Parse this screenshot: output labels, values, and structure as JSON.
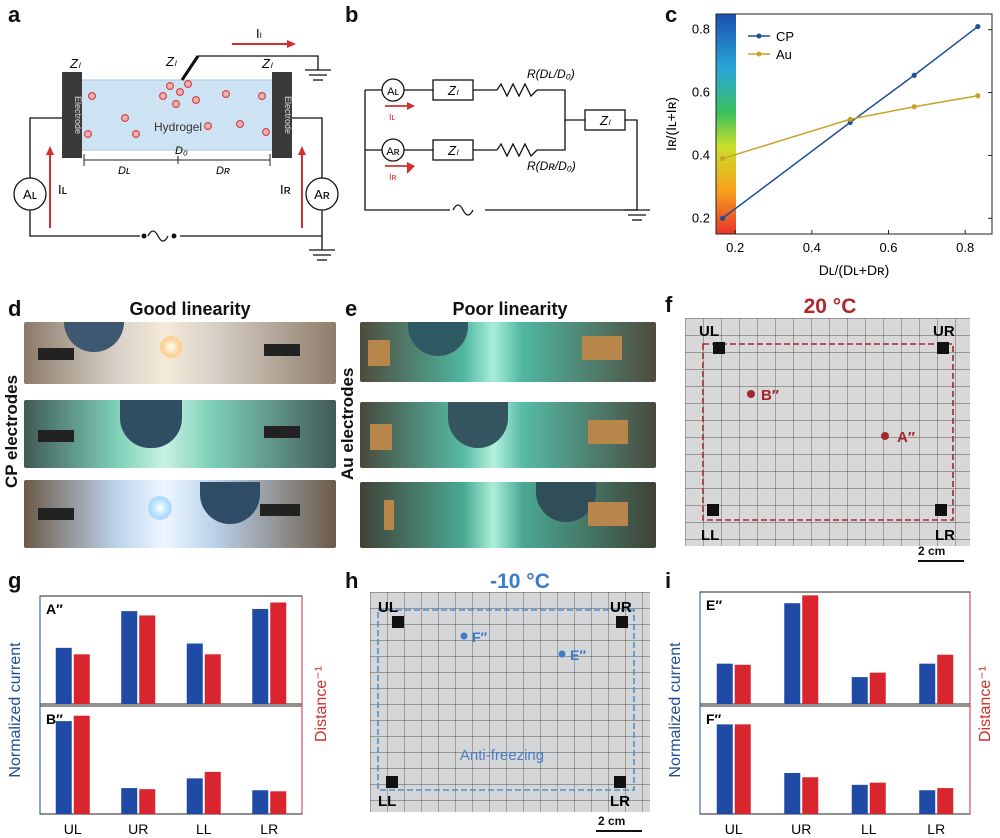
{
  "panels": {
    "a": "a",
    "b": "b",
    "c": "c",
    "d": "d",
    "e": "e",
    "f": "f",
    "g": "g",
    "h": "h",
    "i": "i"
  },
  "panel_a": {
    "z_left": "Zₗ",
    "z_mid": "Zₗ",
    "z_right": "Zₗ",
    "current_top": "Iₗ",
    "electrode_left": "Electrode",
    "electrode_right": "Electrode",
    "hydrogel": "Hydrogel",
    "d0": "D₀",
    "dl": "Dʟ",
    "dr": "Dʀ",
    "meter_left": "Aʟ",
    "meter_right": "Aʀ",
    "i_left": "Iʟ",
    "i_right": "Iʀ"
  },
  "panel_b": {
    "meter_top": "Aʟ",
    "meter_bottom": "Aʀ",
    "z_top": "Zₗ",
    "z_bottom": "Zₗ",
    "z_right": "Zₗ",
    "r_top": "R(Dʟ/D₀)",
    "r_bottom": "R(Dʀ/D₀)",
    "i_top": "Iʟ",
    "i_bottom": "Iʀ"
  },
  "chart_data": {
    "type": "line",
    "xlabel": "Dʟ/(Dʟ+Dʀ)",
    "ylabel": "Iʀ/(Iʟ+Iʀ)",
    "xlim": [
      0.15,
      0.87
    ],
    "ylim": [
      0.15,
      0.85
    ],
    "xticks": [
      "0.2",
      "0.4",
      "0.6",
      "0.8"
    ],
    "yticks": [
      "0.2",
      "0.4",
      "0.6",
      "0.8"
    ],
    "legend_position": "top-left",
    "series": [
      {
        "name": "CP",
        "color": "#1f4e96",
        "x": [
          0.167,
          0.5,
          0.667,
          0.833
        ],
        "y": [
          0.2,
          0.505,
          0.655,
          0.81
        ]
      },
      {
        "name": "Au",
        "color": "#c9a227",
        "x": [
          0.167,
          0.5,
          0.667,
          0.833
        ],
        "y": [
          0.39,
          0.515,
          0.555,
          0.59
        ]
      }
    ]
  },
  "panel_d": {
    "title": "Good linearity",
    "side": "CP electrodes"
  },
  "panel_e": {
    "title": "Poor linearity",
    "side": "Au electrodes"
  },
  "panel_f": {
    "temp": "20 °C",
    "ul": "UL",
    "ur": "UR",
    "ll": "LL",
    "lr": "LR",
    "point_a": "A″",
    "point_b": "B″",
    "scale": "2 cm"
  },
  "panel_h": {
    "temp": "-10 °C",
    "ul": "UL",
    "ur": "UR",
    "ll": "LL",
    "lr": "LR",
    "point_e": "E″",
    "point_f": "F″",
    "label": "Anti-freezing",
    "scale": "2 cm"
  },
  "panel_g": {
    "ylabel_left": "Normalized current",
    "ylabel_right": "Distance⁻¹",
    "categories": [
      "UL",
      "UR",
      "LL",
      "LR"
    ],
    "top_label": "A″",
    "bottom_label": "B″",
    "top_current": [
      0.52,
      0.86,
      0.56,
      0.88
    ],
    "top_distance": [
      0.46,
      0.82,
      0.46,
      0.94
    ],
    "bottom_current": [
      0.86,
      0.24,
      0.33,
      0.22
    ],
    "bottom_distance": [
      0.91,
      0.23,
      0.39,
      0.21
    ]
  },
  "panel_i": {
    "ylabel_left": "Normalized current",
    "ylabel_right": "Distance⁻¹",
    "categories": [
      "UL",
      "UR",
      "LL",
      "LR"
    ],
    "top_label": "E″",
    "bottom_label": "F″",
    "top_current": [
      0.36,
      0.9,
      0.24,
      0.36
    ],
    "top_distance": [
      0.35,
      0.97,
      0.28,
      0.44
    ],
    "bottom_current": [
      0.83,
      0.38,
      0.27,
      0.22
    ],
    "bottom_distance": [
      0.83,
      0.34,
      0.29,
      0.24
    ]
  }
}
